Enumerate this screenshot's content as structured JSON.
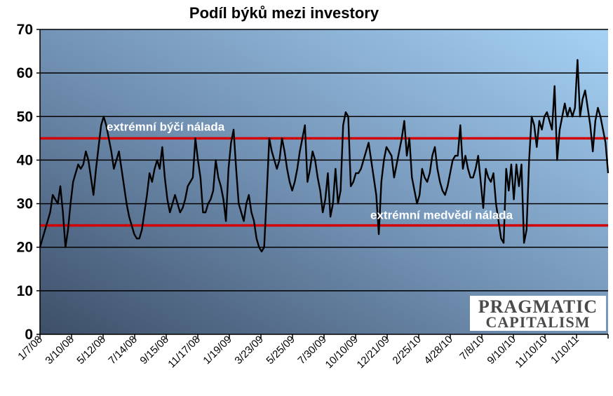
{
  "chart_data": {
    "type": "line",
    "title": "Podíl býků mezi investory",
    "xlabel": "",
    "ylabel": "",
    "ylim": [
      0,
      70
    ],
    "yticks": [
      0,
      10,
      20,
      30,
      40,
      50,
      60,
      70
    ],
    "grid": true,
    "x_tick_labels": [
      "1/7/08",
      "3/10/08",
      "5/12/08",
      "7/14/08",
      "9/15/08",
      "11/17/08",
      "1/19/09",
      "3/23/09",
      "5/25/09",
      "7/30/09",
      "10/10/09",
      "12/21/09",
      "2/25/10",
      "4/28/10",
      "7/8/10",
      "9/10/10",
      "11/10/10",
      "1/10/11"
    ],
    "series": [
      {
        "values": [
          20,
          22,
          24,
          26,
          28,
          32,
          31,
          30,
          34,
          28,
          20,
          24,
          30,
          35,
          37,
          39,
          38,
          39,
          42,
          40,
          36,
          32,
          38,
          43,
          48,
          50,
          48,
          45,
          42,
          38,
          40,
          42,
          38,
          34,
          30,
          27,
          25,
          23,
          22,
          22,
          24,
          28,
          32,
          37,
          35,
          38,
          40,
          38,
          43,
          36,
          31,
          28,
          30,
          32,
          30,
          28,
          29,
          31,
          34,
          35,
          36,
          45,
          40,
          36,
          28,
          28,
          30,
          31,
          33,
          40,
          36,
          34,
          31,
          26,
          38,
          44,
          47,
          38,
          30,
          28,
          26,
          30,
          32,
          28,
          26,
          22,
          20,
          19,
          20,
          32,
          45,
          42,
          40,
          38,
          40,
          45,
          42,
          38,
          35,
          33,
          35,
          38,
          42,
          45,
          48,
          35,
          38,
          42,
          40,
          36,
          33,
          28,
          31,
          37,
          27,
          30,
          38,
          30,
          33,
          48,
          51,
          50,
          34,
          35,
          37,
          37,
          38,
          40,
          42,
          44,
          40,
          36,
          32,
          23,
          35,
          40,
          43,
          42,
          41,
          36,
          39,
          42,
          45,
          49,
          41,
          45,
          36,
          33,
          30,
          32,
          38,
          36,
          35,
          37,
          41,
          43,
          38,
          35,
          33,
          32,
          34,
          37,
          40,
          41,
          41,
          48,
          38,
          41,
          38,
          36,
          36,
          38,
          41,
          35,
          29,
          38,
          36,
          35,
          37,
          30,
          26,
          22,
          21,
          38,
          33,
          39,
          31,
          39,
          34,
          39,
          21,
          24,
          40,
          50,
          48,
          43,
          49,
          47,
          50,
          51,
          49,
          47,
          57,
          40,
          47,
          50,
          53,
          50,
          52,
          50,
          52,
          63,
          50,
          54,
          56,
          52,
          48,
          42,
          49,
          52,
          50,
          47,
          44,
          37
        ]
      }
    ],
    "reference_lines": [
      {
        "y": 45,
        "label": "extrémní býčí nálada",
        "color": "#d40000"
      },
      {
        "y": 25,
        "label": "extrémní medvědí nálada",
        "color": "#d40000"
      }
    ],
    "colors": {
      "line": "#000000",
      "gridline": "#000000",
      "plot_bg_left": "#3d4f68",
      "plot_bg_mid": "#6f8eb0",
      "plot_bg_right": "#9fcbf0"
    },
    "watermark": {
      "line1": "PRAGMATIC",
      "line2": "CAPITALISM"
    }
  }
}
